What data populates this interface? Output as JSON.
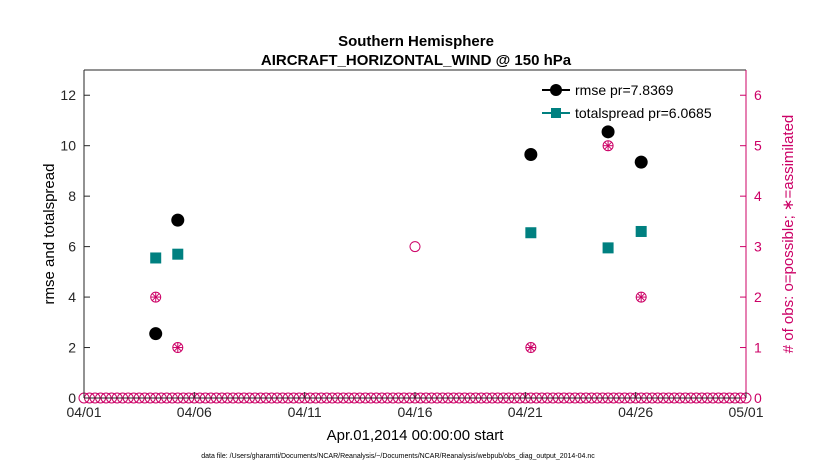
{
  "chart_data": {
    "type": "scatter",
    "title_line1": "Southern Hemisphere",
    "title_line2": "AIRCRAFT_HORIZONTAL_WIND @ 150 hPa",
    "xlabel": "Apr.01,2014 00:00:00 start",
    "ylabel_left": "rmse and totalspread",
    "ylabel_right": "# of obs: o=possible; ∗=assimilated",
    "footnote": "data file: /Users/gharamti/Documents/NCAR/Reanalysis/~/Documents/NCAR/Reanalysis/webpub/obs_diag_output_2014-04.nc",
    "x_range": [
      0,
      30
    ],
    "y_left_range": [
      0,
      13
    ],
    "y_right_range": [
      0,
      6.5
    ],
    "x_ticks": [
      {
        "value": 0,
        "label": "04/01"
      },
      {
        "value": 5,
        "label": "04/06"
      },
      {
        "value": 10,
        "label": "04/11"
      },
      {
        "value": 15,
        "label": "04/16"
      },
      {
        "value": 20,
        "label": "04/21"
      },
      {
        "value": 25,
        "label": "04/26"
      },
      {
        "value": 30,
        "label": "05/01"
      }
    ],
    "y_left_ticks": [
      {
        "value": 0,
        "label": "0"
      },
      {
        "value": 2,
        "label": "2"
      },
      {
        "value": 4,
        "label": "4"
      },
      {
        "value": 6,
        "label": "6"
      },
      {
        "value": 8,
        "label": "8"
      },
      {
        "value": 10,
        "label": "10"
      },
      {
        "value": 12,
        "label": "12"
      }
    ],
    "y_right_ticks": [
      {
        "value": 0,
        "label": "0"
      },
      {
        "value": 1,
        "label": "1"
      },
      {
        "value": 2,
        "label": "2"
      },
      {
        "value": 3,
        "label": "3"
      },
      {
        "value": 4,
        "label": "4"
      },
      {
        "value": 5,
        "label": "5"
      },
      {
        "value": 6,
        "label": "6"
      }
    ],
    "series": [
      {
        "name": "rmse",
        "legend": "rmse pr=7.8369",
        "color": "#000000",
        "marker": "circle",
        "x": [
          3.25,
          4.25,
          20.25,
          23.75,
          25.25
        ],
        "y": [
          2.55,
          7.05,
          9.65,
          10.55,
          9.35
        ]
      },
      {
        "name": "totalspread",
        "legend": "totalspread pr=6.0685",
        "color": "#008080",
        "marker": "square",
        "x": [
          3.25,
          4.25,
          20.25,
          23.75,
          25.25
        ],
        "y": [
          5.55,
          5.7,
          6.55,
          5.95,
          6.6
        ]
      }
    ],
    "obs_possible": {
      "color": "#cc0066",
      "x_special": [
        3.25,
        4.25,
        15.0,
        20.25,
        23.75,
        25.25
      ],
      "y_special": [
        2,
        1,
        3,
        1,
        5,
        2
      ],
      "zero_x_start": 0.0,
      "zero_x_end": 30.0,
      "zero_x_step": 0.25
    },
    "obs_assimilated": {
      "color": "#cc0066",
      "x": [
        3.25,
        4.25,
        20.25,
        23.75,
        25.25
      ],
      "y": [
        2,
        1,
        1,
        5,
        2
      ]
    }
  }
}
